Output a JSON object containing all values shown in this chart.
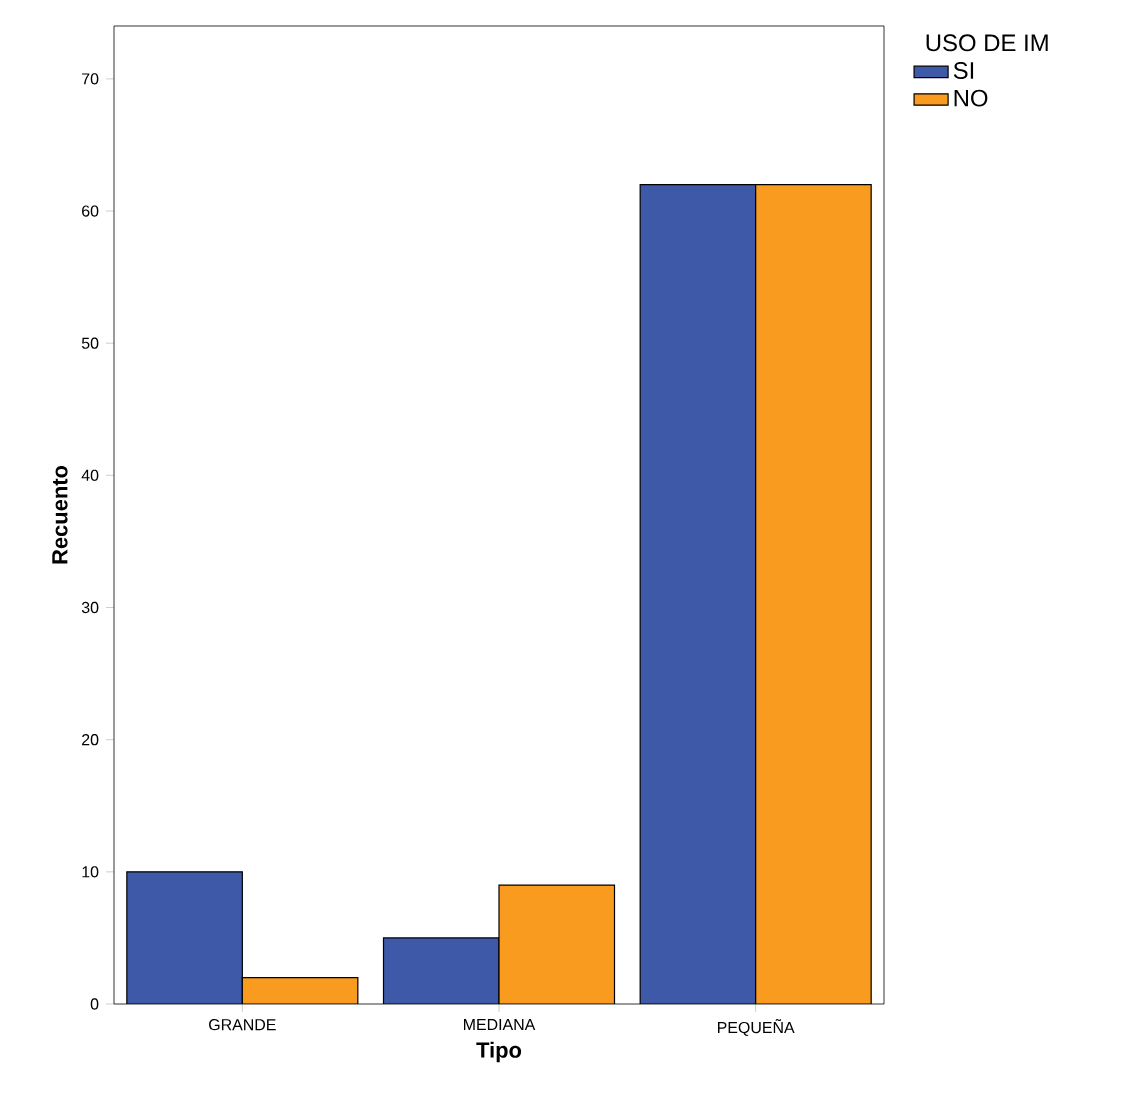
{
  "chart_data": {
    "type": "bar",
    "xlabel": "Tipo",
    "ylabel": "Recuento",
    "legend_title": "USO DE IM",
    "legend": "right",
    "categories": [
      "GRANDE",
      "MEDIANA",
      "PEQUEÑA"
    ],
    "series": [
      {
        "name": "SI",
        "color": "#3f59a9",
        "values": [
          10,
          5,
          62
        ]
      },
      {
        "name": "NO",
        "color": "#f89b1e",
        "values": [
          2,
          9,
          62
        ]
      }
    ],
    "ylim": [
      0,
      74
    ],
    "yticks": [
      0,
      10,
      20,
      30,
      40,
      50,
      60,
      70
    ]
  }
}
